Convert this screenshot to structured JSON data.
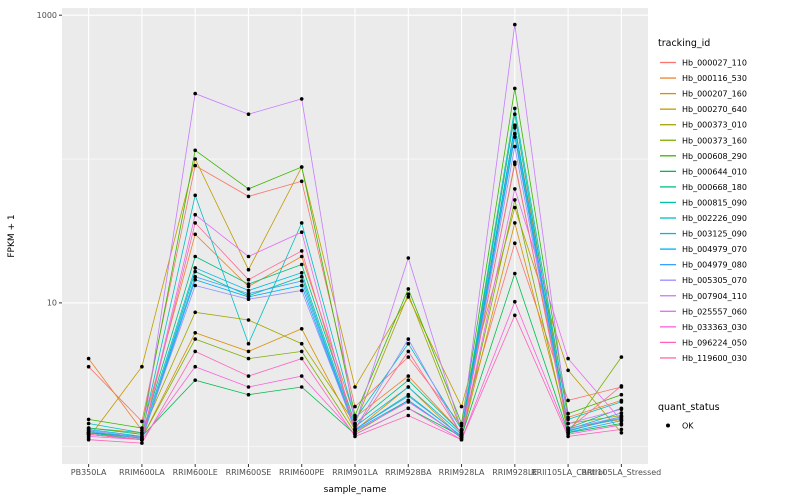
{
  "chart_data": {
    "type": "line",
    "title": "",
    "xlabel": "sample_name",
    "ylabel": "FPKM + 1",
    "y_scale": "log10",
    "panel_bg": "#EBEBEB",
    "gridline_color": "#FFFFFF",
    "point_color": "#000000",
    "y_ticks": [
      {
        "value": 10,
        "label": "10"
      },
      {
        "value": 1000,
        "label": "1000"
      }
    ],
    "y_minor_gridlines": [
      1,
      100
    ],
    "y_range_log10": [
      -0.12,
      3.05
    ],
    "categories": [
      "PB350LA",
      "RRIM600LA",
      "RRIM600LE",
      "RRIM600SE",
      "RRIM600PE",
      "RRIM901LA",
      "RRIM928BA",
      "RRIM928LA",
      "RRIM928LE",
      "RRII105LA_Control",
      "RRII105LA_Stressed"
    ],
    "legend": {
      "title": "tracking_id",
      "position": "right"
    },
    "legend2": {
      "title": "quant_status",
      "entries": [
        {
          "label": "OK",
          "marker": "black-point"
        }
      ]
    },
    "series": [
      {
        "name": "Hb_000027_110",
        "color": "#F8766D",
        "values": [
          3.6,
          1.5,
          90,
          55,
          70,
          1.9,
          4.2,
          1.4,
          26,
          2.1,
          2.6
        ]
      },
      {
        "name": "Hb_000116_530",
        "color": "#EA8331",
        "values": [
          4.1,
          1.3,
          30,
          13,
          21,
          1.6,
          3.1,
          1.25,
          170,
          1.6,
          2.1
        ]
      },
      {
        "name": "Hb_000207_160",
        "color": "#D89000",
        "values": [
          1.25,
          1.15,
          6.2,
          4.6,
          6.6,
          1.3,
          2.6,
          1.15,
          36,
          1.35,
          1.55
        ]
      },
      {
        "name": "Hb_000270_640",
        "color": "#C09B00",
        "values": [
          1.15,
          3.6,
          100,
          17,
          88,
          2.6,
          11,
          1.9,
          46,
          3.4,
          1.25
        ]
      },
      {
        "name": "Hb_000373_010",
        "color": "#A3A500",
        "values": [
          1.35,
          1.25,
          8.6,
          7.6,
          5.2,
          1.45,
          11.5,
          1.3,
          92,
          1.45,
          1.65
        ]
      },
      {
        "name": "Hb_000373_160",
        "color": "#7CAE00",
        "values": [
          1.25,
          1.15,
          5.6,
          4.1,
          4.6,
          1.25,
          2.1,
          1.15,
          52,
          1.25,
          4.2
        ]
      },
      {
        "name": "Hb_000608_290",
        "color": "#39B600",
        "values": [
          1.55,
          1.35,
          115,
          62,
          88,
          1.65,
          12.5,
          1.45,
          310,
          1.7,
          2.3
        ]
      },
      {
        "name": "Hb_000644_010",
        "color": "#00BB4E",
        "values": [
          1.25,
          1.18,
          2.9,
          2.3,
          2.6,
          1.22,
          1.85,
          1.18,
          16,
          1.25,
          1.45
        ]
      },
      {
        "name": "Hb_000668_180",
        "color": "#00BF7D",
        "values": [
          1.35,
          1.22,
          21,
          13.5,
          18.5,
          1.45,
          2.9,
          1.25,
          205,
          1.35,
          1.85
        ]
      },
      {
        "name": "Hb_000815_090",
        "color": "#00C1A3",
        "values": [
          1.25,
          1.12,
          16.5,
          11.2,
          15.2,
          1.32,
          2.3,
          1.18,
          150,
          1.28,
          1.62
        ]
      },
      {
        "name": "Hb_002226_090",
        "color": "#00BFC4",
        "values": [
          1.45,
          1.25,
          56,
          5.2,
          36,
          1.55,
          5.2,
          1.32,
          225,
          1.55,
          2.05
        ]
      },
      {
        "name": "Hb_003125_090",
        "color": "#00BAE0",
        "values": [
          1.32,
          1.18,
          17.5,
          12.2,
          16.2,
          1.38,
          2.6,
          1.22,
          165,
          1.32,
          1.72
        ]
      },
      {
        "name": "Hb_004979_070",
        "color": "#00B0F6",
        "values": [
          1.22,
          1.12,
          14.5,
          11.0,
          13.2,
          1.3,
          2.1,
          1.16,
          172,
          1.26,
          1.52
        ]
      },
      {
        "name": "Hb_004979_080",
        "color": "#35A2FF",
        "values": [
          1.28,
          1.14,
          15.2,
          11.6,
          14.2,
          1.32,
          2.25,
          1.19,
          142,
          1.3,
          1.58
        ]
      },
      {
        "name": "Hb_005305_070",
        "color": "#9590FF",
        "values": [
          1.3,
          1.16,
          13.2,
          10.6,
          12.2,
          1.33,
          5.6,
          1.21,
          122,
          1.33,
          1.62
        ]
      },
      {
        "name": "Hb_007904_110",
        "color": "#C77CFF",
        "values": [
          1.22,
          1.12,
          285,
          205,
          262,
          1.42,
          20.5,
          1.3,
          860,
          1.45,
          1.82
        ]
      },
      {
        "name": "Hb_025557_060",
        "color": "#E76BF3",
        "values": [
          1.18,
          1.12,
          41,
          21,
          31,
          1.28,
          2.05,
          1.17,
          62,
          4.1,
          1.52
        ]
      },
      {
        "name": "Hb_033363_030",
        "color": "#FA62DB",
        "values": [
          1.22,
          1.12,
          3.6,
          2.6,
          3.1,
          1.22,
          1.85,
          1.12,
          10.2,
          1.22,
          1.42
        ]
      },
      {
        "name": "Hb_096224_050",
        "color": "#FF62BC",
        "values": [
          1.12,
          1.06,
          4.6,
          3.1,
          4.1,
          1.18,
          1.65,
          1.12,
          8.2,
          1.18,
          1.32
        ]
      },
      {
        "name": "Hb_119600_030",
        "color": "#FF6A98",
        "values": [
          1.22,
          1.12,
          36,
          14.5,
          23,
          1.32,
          4.6,
          1.22,
          95,
          1.32,
          2.65
        ]
      }
    ]
  }
}
